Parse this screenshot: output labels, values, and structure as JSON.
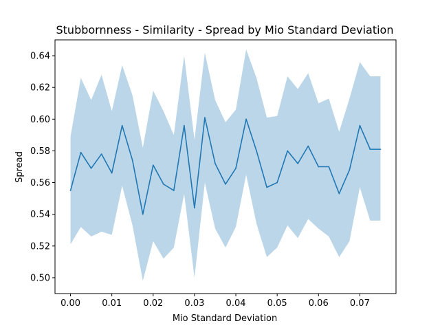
{
  "chart_data": {
    "type": "line",
    "title": "Stubbornness - Similarity - Spread by Mio Standard Deviation",
    "xlabel": "Mio Standard Deviation",
    "ylabel": "Spread",
    "xlim": [
      -0.00375,
      0.07875
    ],
    "ylim": [
      0.49,
      0.65
    ],
    "xticks": [
      0.0,
      0.01,
      0.02,
      0.03,
      0.04,
      0.05,
      0.06,
      0.07
    ],
    "xtick_labels": [
      "0.00",
      "0.01",
      "0.02",
      "0.03",
      "0.04",
      "0.05",
      "0.06",
      "0.07"
    ],
    "yticks": [
      0.5,
      0.52,
      0.54,
      0.56,
      0.58,
      0.6,
      0.62,
      0.64
    ],
    "ytick_labels": [
      "0.50",
      "0.52",
      "0.54",
      "0.56",
      "0.58",
      "0.60",
      "0.62",
      "0.64"
    ],
    "grid": false,
    "colors": {
      "line": "#1f77b4",
      "band": "#1f77b4"
    },
    "x": [
      0.0,
      0.0025,
      0.005,
      0.0075,
      0.01,
      0.0125,
      0.015,
      0.0175,
      0.02,
      0.0225,
      0.025,
      0.0275,
      0.03,
      0.0325,
      0.035,
      0.0375,
      0.04,
      0.0425,
      0.045,
      0.0475,
      0.05,
      0.0525,
      0.055,
      0.0575,
      0.06,
      0.0625,
      0.065,
      0.0675,
      0.07,
      0.0725,
      0.075
    ],
    "series": [
      {
        "mean": [
          0.555,
          0.579,
          0.569,
          0.578,
          0.566,
          0.596,
          0.574,
          0.54,
          0.571,
          0.559,
          0.555,
          0.596,
          0.544,
          0.601,
          0.572,
          0.559,
          0.569,
          0.6,
          0.58,
          0.557,
          0.56,
          0.58,
          0.572,
          0.583,
          0.57,
          0.57,
          0.553,
          0.568,
          0.596,
          0.581,
          0.581
        ],
        "upper": [
          0.589,
          0.626,
          0.612,
          0.628,
          0.605,
          0.634,
          0.615,
          0.582,
          0.618,
          0.605,
          0.59,
          0.64,
          0.587,
          0.642,
          0.612,
          0.598,
          0.606,
          0.644,
          0.626,
          0.601,
          0.602,
          0.627,
          0.619,
          0.629,
          0.61,
          0.613,
          0.592,
          0.613,
          0.636,
          0.627,
          0.627
        ],
        "lower": [
          0.521,
          0.532,
          0.526,
          0.529,
          0.527,
          0.558,
          0.533,
          0.498,
          0.523,
          0.512,
          0.519,
          0.553,
          0.5,
          0.56,
          0.531,
          0.519,
          0.532,
          0.565,
          0.534,
          0.513,
          0.519,
          0.533,
          0.525,
          0.537,
          0.531,
          0.526,
          0.513,
          0.523,
          0.557,
          0.536,
          0.536
        ]
      }
    ]
  }
}
